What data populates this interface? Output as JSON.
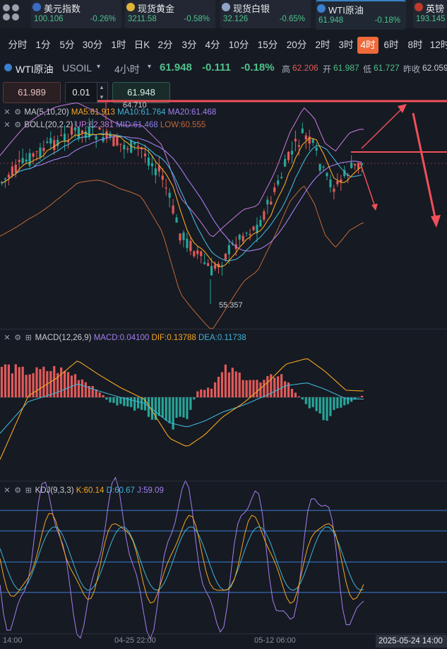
{
  "tickers": [
    {
      "name": "美元指数",
      "price": "100.106",
      "change": "-0.26%",
      "icon": "us-flag-icon",
      "color": "#3b6cc4"
    },
    {
      "name": "现货黄金",
      "price": "3211.58",
      "change": "-0.58%",
      "icon": "gold-icon",
      "color": "#e0b43a"
    },
    {
      "name": "现货白银",
      "price": "32.126",
      "change": "-0.65%",
      "icon": "silver-icon",
      "color": "#8fa4c8"
    },
    {
      "name": "WTI原油",
      "price": "61.948",
      "change": "-0.18%",
      "icon": "oil-icon",
      "color": "#3a7fd0"
    },
    {
      "name": "英镑",
      "price": "193.145",
      "change": "",
      "icon": "uk-flag-icon",
      "color": "#c0392b"
    }
  ],
  "timeframes": [
    "分时",
    "1分",
    "5分",
    "30分",
    "1时",
    "日K",
    "2分",
    "3分",
    "4分",
    "10分",
    "15分",
    "20分",
    "2时",
    "3时",
    "4时",
    "6时",
    "8时",
    "12时"
  ],
  "active_timeframe": "4时",
  "info": {
    "symbol": "WTI原油",
    "code": "USOIL",
    "period": "4小时",
    "price": "61.948",
    "change": "-0.111",
    "pct": "-0.18%",
    "high_label": "高",
    "high": "62.206",
    "open_label": "开",
    "open": "61.987",
    "low_label": "低",
    "low": "61.727",
    "prev_label": "昨收",
    "prev": "62.059"
  },
  "order": {
    "sell_price": "61.989",
    "lot": "0.01",
    "buy_price": "61.948"
  },
  "main_indicators": {
    "ma": {
      "label": "MA(5,10,20)",
      "ma5": "MA5:61.913",
      "ma10": "MA10:61.764",
      "ma20": "MA20:61.468"
    },
    "boll": {
      "label": "BOLL(20,2,2)",
      "up": "UP:62.381",
      "mid": "MID:61.468",
      "low": "LOW:60.555"
    },
    "high_mark": "64.710",
    "low_mark": "55.357"
  },
  "macd": {
    "label": "MACD(12,26,9)",
    "macd": "MACD:0.04100",
    "dif": "DIF:0.13788",
    "dea": "DEA:0.11738"
  },
  "kdj": {
    "label": "KDJ(9,3,3)",
    "k": "K:60.14",
    "d": "D:60.67",
    "j": "J:59.09"
  },
  "xaxis": [
    "14:00",
    "04-25 22:00",
    "05-12 06:00"
  ],
  "crosshair_time": "2025-05-24 14:00",
  "colors": {
    "up": "#e15a5a",
    "down": "#26a69a",
    "ma5": "#f5a623",
    "ma10": "#3fb4d8",
    "ma20": "#a37ff0",
    "boll_up": "#c77be0",
    "boll_mid": "#8a7ff0",
    "boll_low": "#c0683a",
    "accent": "#ee6a3b",
    "drawing": "#f0505a"
  }
}
